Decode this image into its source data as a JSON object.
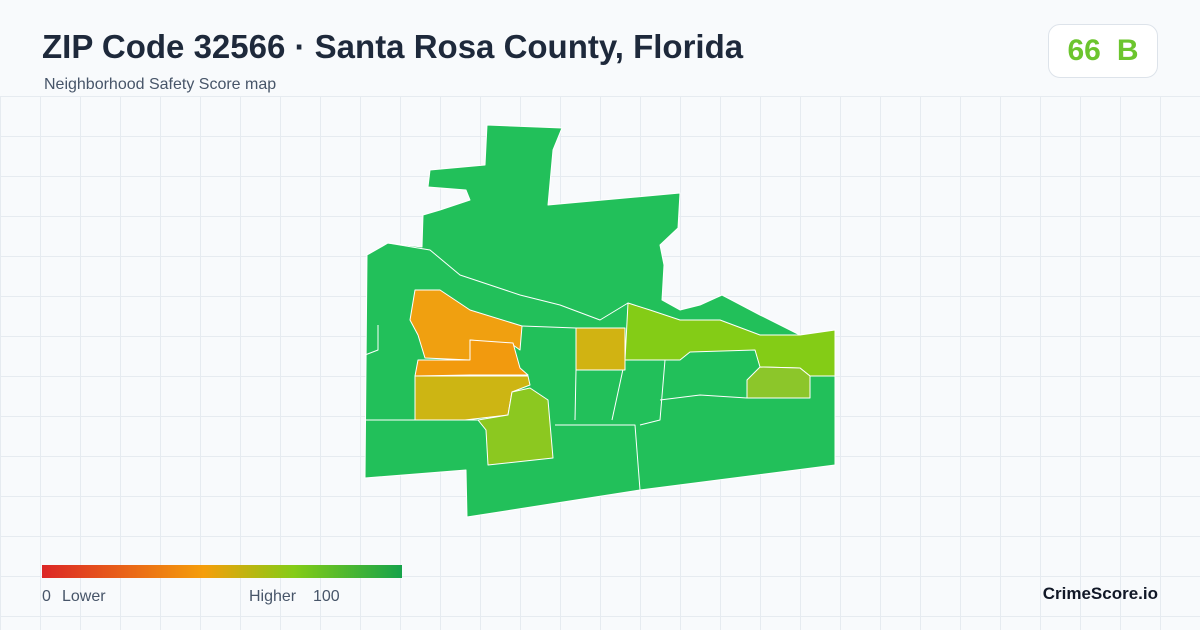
{
  "header": {
    "title": "ZIP Code 32566 · Santa Rosa County, Florida",
    "subtitle": "Neighborhood Safety Score map"
  },
  "badge": {
    "score": 66,
    "grade": "B"
  },
  "legend": {
    "min": 0,
    "min_label": "Lower",
    "max_label": "Higher",
    "max": 100
  },
  "footer": {
    "brand": "CrimeScore.io"
  }
}
